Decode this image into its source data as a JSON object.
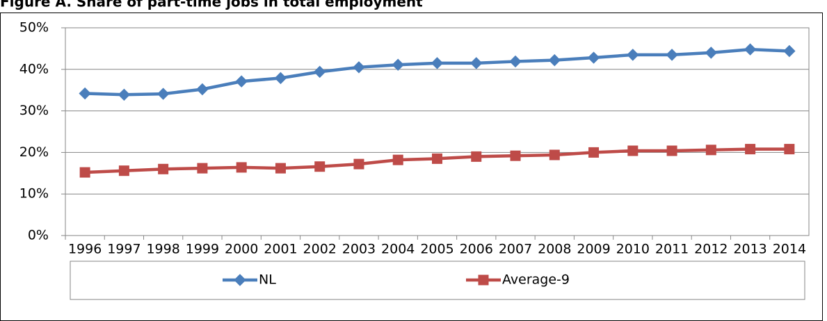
{
  "chart_data": {
    "type": "line",
    "title": "Figure A. Share of part-time jobs in total employment",
    "categories": [
      "1996",
      "1997",
      "1998",
      "1999",
      "2000",
      "2001",
      "2002",
      "2003",
      "2004",
      "2005",
      "2006",
      "2007",
      "2008",
      "2009",
      "2010",
      "2011",
      "2012",
      "2013",
      "2014"
    ],
    "series": [
      {
        "name": "NL",
        "color": "#4a7ebb",
        "marker": "diamond",
        "values": [
          34.2,
          33.9,
          34.1,
          35.2,
          37.1,
          37.9,
          39.4,
          40.5,
          41.1,
          41.5,
          41.5,
          41.9,
          42.2,
          42.8,
          43.5,
          43.5,
          44.0,
          44.8,
          44.4
        ]
      },
      {
        "name": "Average-9",
        "color": "#be4b48",
        "marker": "square",
        "values": [
          15.2,
          15.6,
          16.0,
          16.2,
          16.4,
          16.2,
          16.6,
          17.2,
          18.2,
          18.5,
          19.0,
          19.2,
          19.4,
          20.0,
          20.4,
          20.4,
          20.6,
          20.8,
          20.8
        ]
      }
    ],
    "ylim": [
      0,
      50
    ],
    "yticks": [
      {
        "value": 0,
        "label": "0%"
      },
      {
        "value": 10,
        "label": "10%"
      },
      {
        "value": 20,
        "label": "20%"
      },
      {
        "value": 30,
        "label": "30%"
      },
      {
        "value": 40,
        "label": "40%"
      },
      {
        "value": 50,
        "label": "50%"
      }
    ],
    "grid": true,
    "legend": "bottom"
  }
}
